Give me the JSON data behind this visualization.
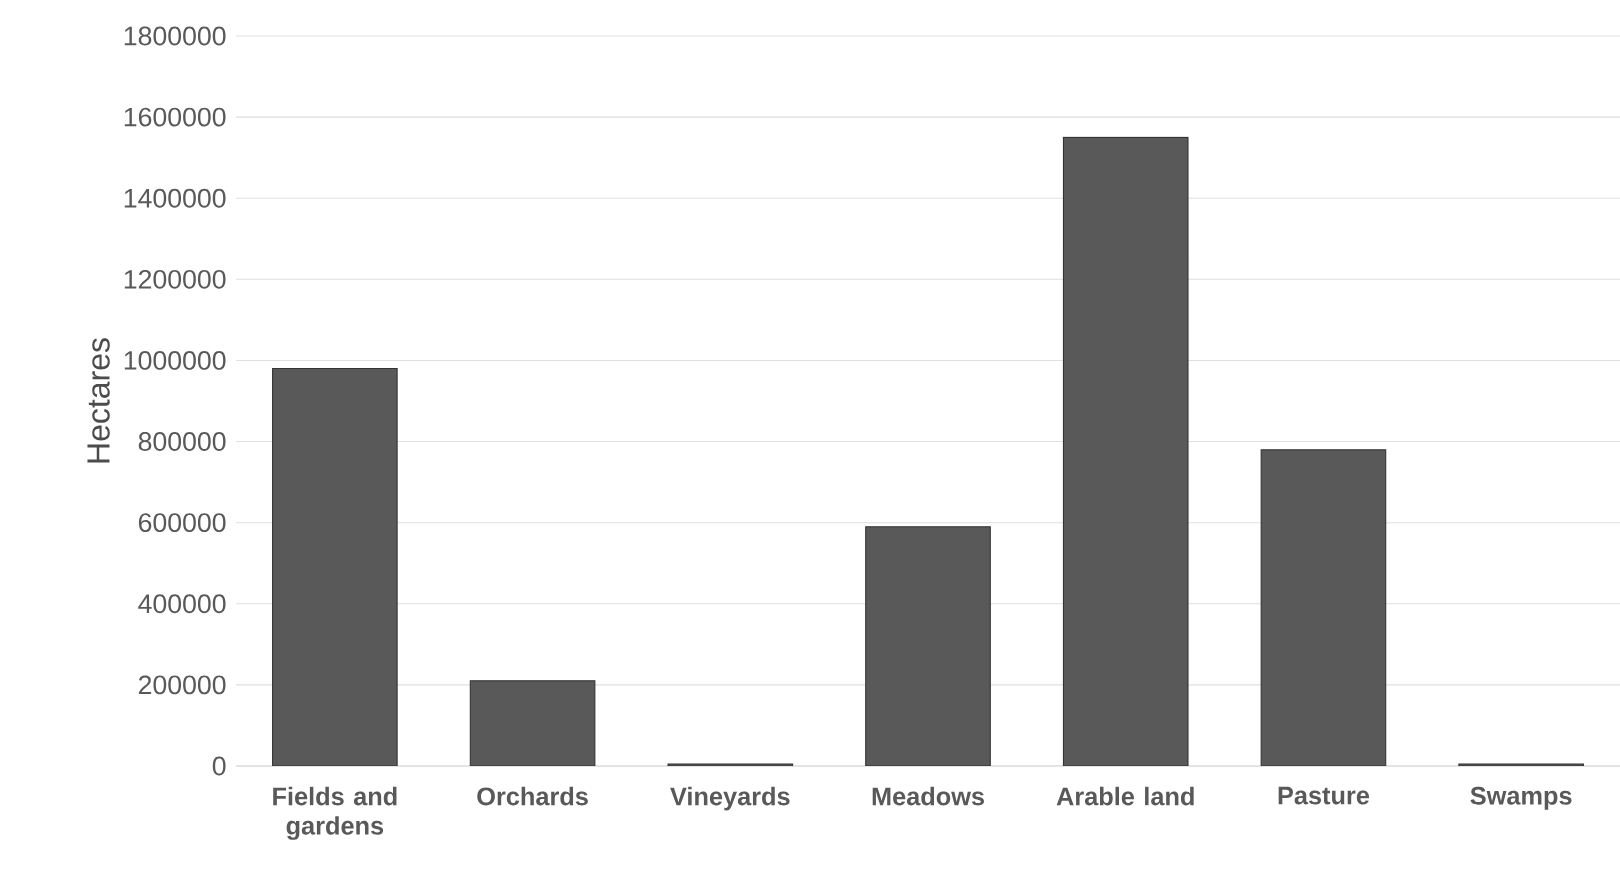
{
  "chart_data": {
    "type": "bar",
    "ylabel": "Hectares",
    "categories": [
      "Fields and gardens",
      "Orchards",
      "Vineyards",
      "Meadows",
      "Arable land",
      "Pasture",
      "Swamps"
    ],
    "values": [
      980000,
      210000,
      5000,
      590000,
      1550000,
      780000,
      5000
    ],
    "color": "#595959",
    "ylim": [
      0,
      1800000
    ],
    "yticks": [
      0,
      200000,
      400000,
      600000,
      800000,
      1000000,
      1200000,
      1400000,
      1600000,
      1800000
    ],
    "grid": "y"
  }
}
